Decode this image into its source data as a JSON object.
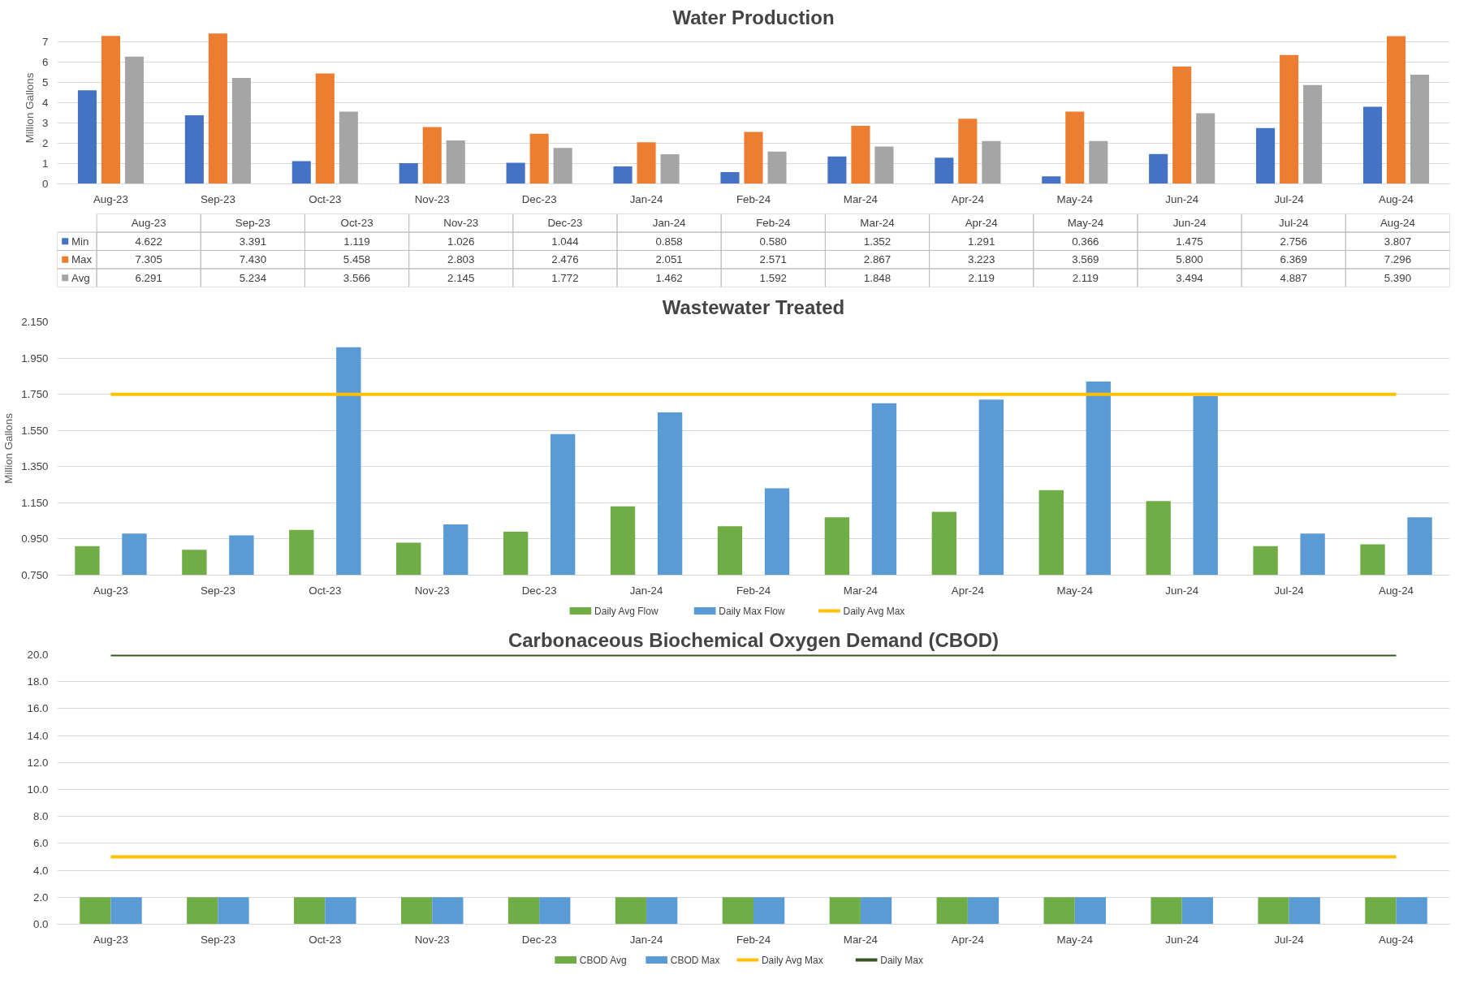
{
  "chart_data": [
    {
      "type": "bar",
      "title": "Water Production",
      "ylabel": "Million Gallons",
      "categories": [
        "Aug-23",
        "Sep-23",
        "Oct-23",
        "Nov-23",
        "Dec-23",
        "Jan-24",
        "Feb-24",
        "Mar-24",
        "Apr-24",
        "May-24",
        "Jun-24",
        "Jul-24",
        "Aug-24"
      ],
      "series": [
        {
          "name": "Min",
          "color": "#4472c4",
          "values": [
            4.622,
            3.391,
            1.119,
            1.026,
            1.044,
            0.858,
            0.58,
            1.352,
            1.291,
            0.366,
            1.475,
            2.756,
            3.807
          ],
          "value_labels": [
            "4.622",
            "3.391",
            "1.119",
            "1.026",
            "1.044",
            "0.858",
            "0.580",
            "1.352",
            "1.291",
            "0.366",
            "1.475",
            "2.756",
            "3.807"
          ]
        },
        {
          "name": "Max",
          "color": "#ed7d31",
          "values": [
            7.305,
            7.43,
            5.458,
            2.803,
            2.476,
            2.051,
            2.571,
            2.867,
            3.223,
            3.569,
            5.8,
            6.369,
            7.296
          ],
          "value_labels": [
            "7.305",
            "7.430",
            "5.458",
            "2.803",
            "2.476",
            "2.051",
            "2.571",
            "2.867",
            "3.223",
            "3.569",
            "5.800",
            "6.369",
            "7.296"
          ]
        },
        {
          "name": "Avg",
          "color": "#a5a5a5",
          "values": [
            6.291,
            5.234,
            3.566,
            2.145,
            1.772,
            1.462,
            1.592,
            1.848,
            2.119,
            2.119,
            3.494,
            4.887,
            5.39
          ],
          "value_labels": [
            "6.291",
            "5.234",
            "3.566",
            "2.145",
            "1.772",
            "1.462",
            "1.592",
            "1.848",
            "2.119",
            "2.119",
            "3.494",
            "4.887",
            "5.390"
          ]
        }
      ],
      "ylim": [
        0,
        7.5
      ],
      "yticks": [
        0,
        1,
        2,
        3,
        4,
        5,
        6,
        7
      ],
      "grid": "y",
      "legend": "bottom"
    },
    {
      "type": "bar",
      "title": "Wastewater Treated",
      "ylabel": "Million Gallons",
      "categories": [
        "Aug-23",
        "Sep-23",
        "Oct-23",
        "Nov-23",
        "Dec-23",
        "Jan-24",
        "Feb-24",
        "Mar-24",
        "Apr-24",
        "May-24",
        "Jun-24",
        "Jul-24",
        "Aug-24"
      ],
      "series": [
        {
          "name": "Daily Avg Flow",
          "color": "#70ad47",
          "values": [
            0.91,
            0.89,
            1.0,
            0.93,
            0.99,
            1.13,
            1.02,
            1.07,
            1.1,
            1.22,
            1.16,
            0.91,
            0.92
          ]
        },
        {
          "name": "Daily Max Flow",
          "color": "#5b9bd5",
          "values": [
            0.98,
            0.97,
            2.01,
            1.03,
            1.53,
            1.65,
            1.23,
            1.7,
            1.72,
            1.82,
            1.74,
            0.98,
            1.07
          ]
        },
        {
          "name": "Daily Avg Max",
          "color": "#ffc000",
          "type": "line",
          "values": [
            1.75,
            1.75,
            1.75,
            1.75,
            1.75,
            1.75,
            1.75,
            1.75,
            1.75,
            1.75,
            1.75,
            1.75,
            1.75
          ]
        }
      ],
      "ylim": [
        0.75,
        2.15
      ],
      "yticks": [
        {
          "value": 0.75,
          "label": "0.750"
        },
        {
          "value": 0.95,
          "label": "0.950"
        },
        {
          "value": 1.15,
          "label": "1.150"
        },
        {
          "value": 1.35,
          "label": "1.350"
        },
        {
          "value": 1.55,
          "label": "1.550"
        },
        {
          "value": 1.75,
          "label": "1.750"
        },
        {
          "value": 1.95,
          "label": "1.950"
        },
        {
          "value": 2.15,
          "label": "2.150"
        }
      ],
      "grid": "y",
      "legend": "bottom"
    },
    {
      "type": "bar",
      "title": "Carbonaceous Biochemical Oxygen Demand (CBOD)",
      "categories": [
        "Aug-23",
        "Sep-23",
        "Oct-23",
        "Nov-23",
        "Dec-23",
        "Jan-24",
        "Feb-24",
        "Mar-24",
        "Apr-24",
        "May-24",
        "Jun-24",
        "Jul-24",
        "Aug-24"
      ],
      "series": [
        {
          "name": "CBOD Avg",
          "color": "#70ad47",
          "values": [
            2,
            2,
            2,
            2,
            2,
            2,
            2,
            2,
            2,
            2,
            2,
            2,
            2
          ]
        },
        {
          "name": "CBOD Max",
          "color": "#5b9bd5",
          "values": [
            2,
            2,
            2,
            2,
            2,
            2,
            2,
            2,
            2,
            2,
            2,
            2,
            2
          ]
        },
        {
          "name": "Daily Avg Max",
          "color": "#ffc000",
          "type": "line",
          "values": [
            5,
            5,
            5,
            5,
            5,
            5,
            5,
            5,
            5,
            5,
            5,
            5,
            5
          ]
        },
        {
          "name": "Daily Max",
          "color": "#375623",
          "type": "line",
          "values": [
            20,
            20,
            20,
            20,
            20,
            20,
            20,
            20,
            20,
            20,
            20,
            20,
            20
          ]
        }
      ],
      "ylim": [
        0,
        20
      ],
      "yticks": [
        {
          "value": 0,
          "label": "0.0"
        },
        {
          "value": 2,
          "label": "2.0"
        },
        {
          "value": 4,
          "label": "4.0"
        },
        {
          "value": 6,
          "label": "6.0"
        },
        {
          "value": 8,
          "label": "8.0"
        },
        {
          "value": 10,
          "label": "10.0"
        },
        {
          "value": 12,
          "label": "12.0"
        },
        {
          "value": 14,
          "label": "14.0"
        },
        {
          "value": 16,
          "label": "16.0"
        },
        {
          "value": 18,
          "label": "18.0"
        },
        {
          "value": 20,
          "label": "20.0"
        }
      ],
      "grid": "y",
      "legend": "bottom"
    }
  ]
}
